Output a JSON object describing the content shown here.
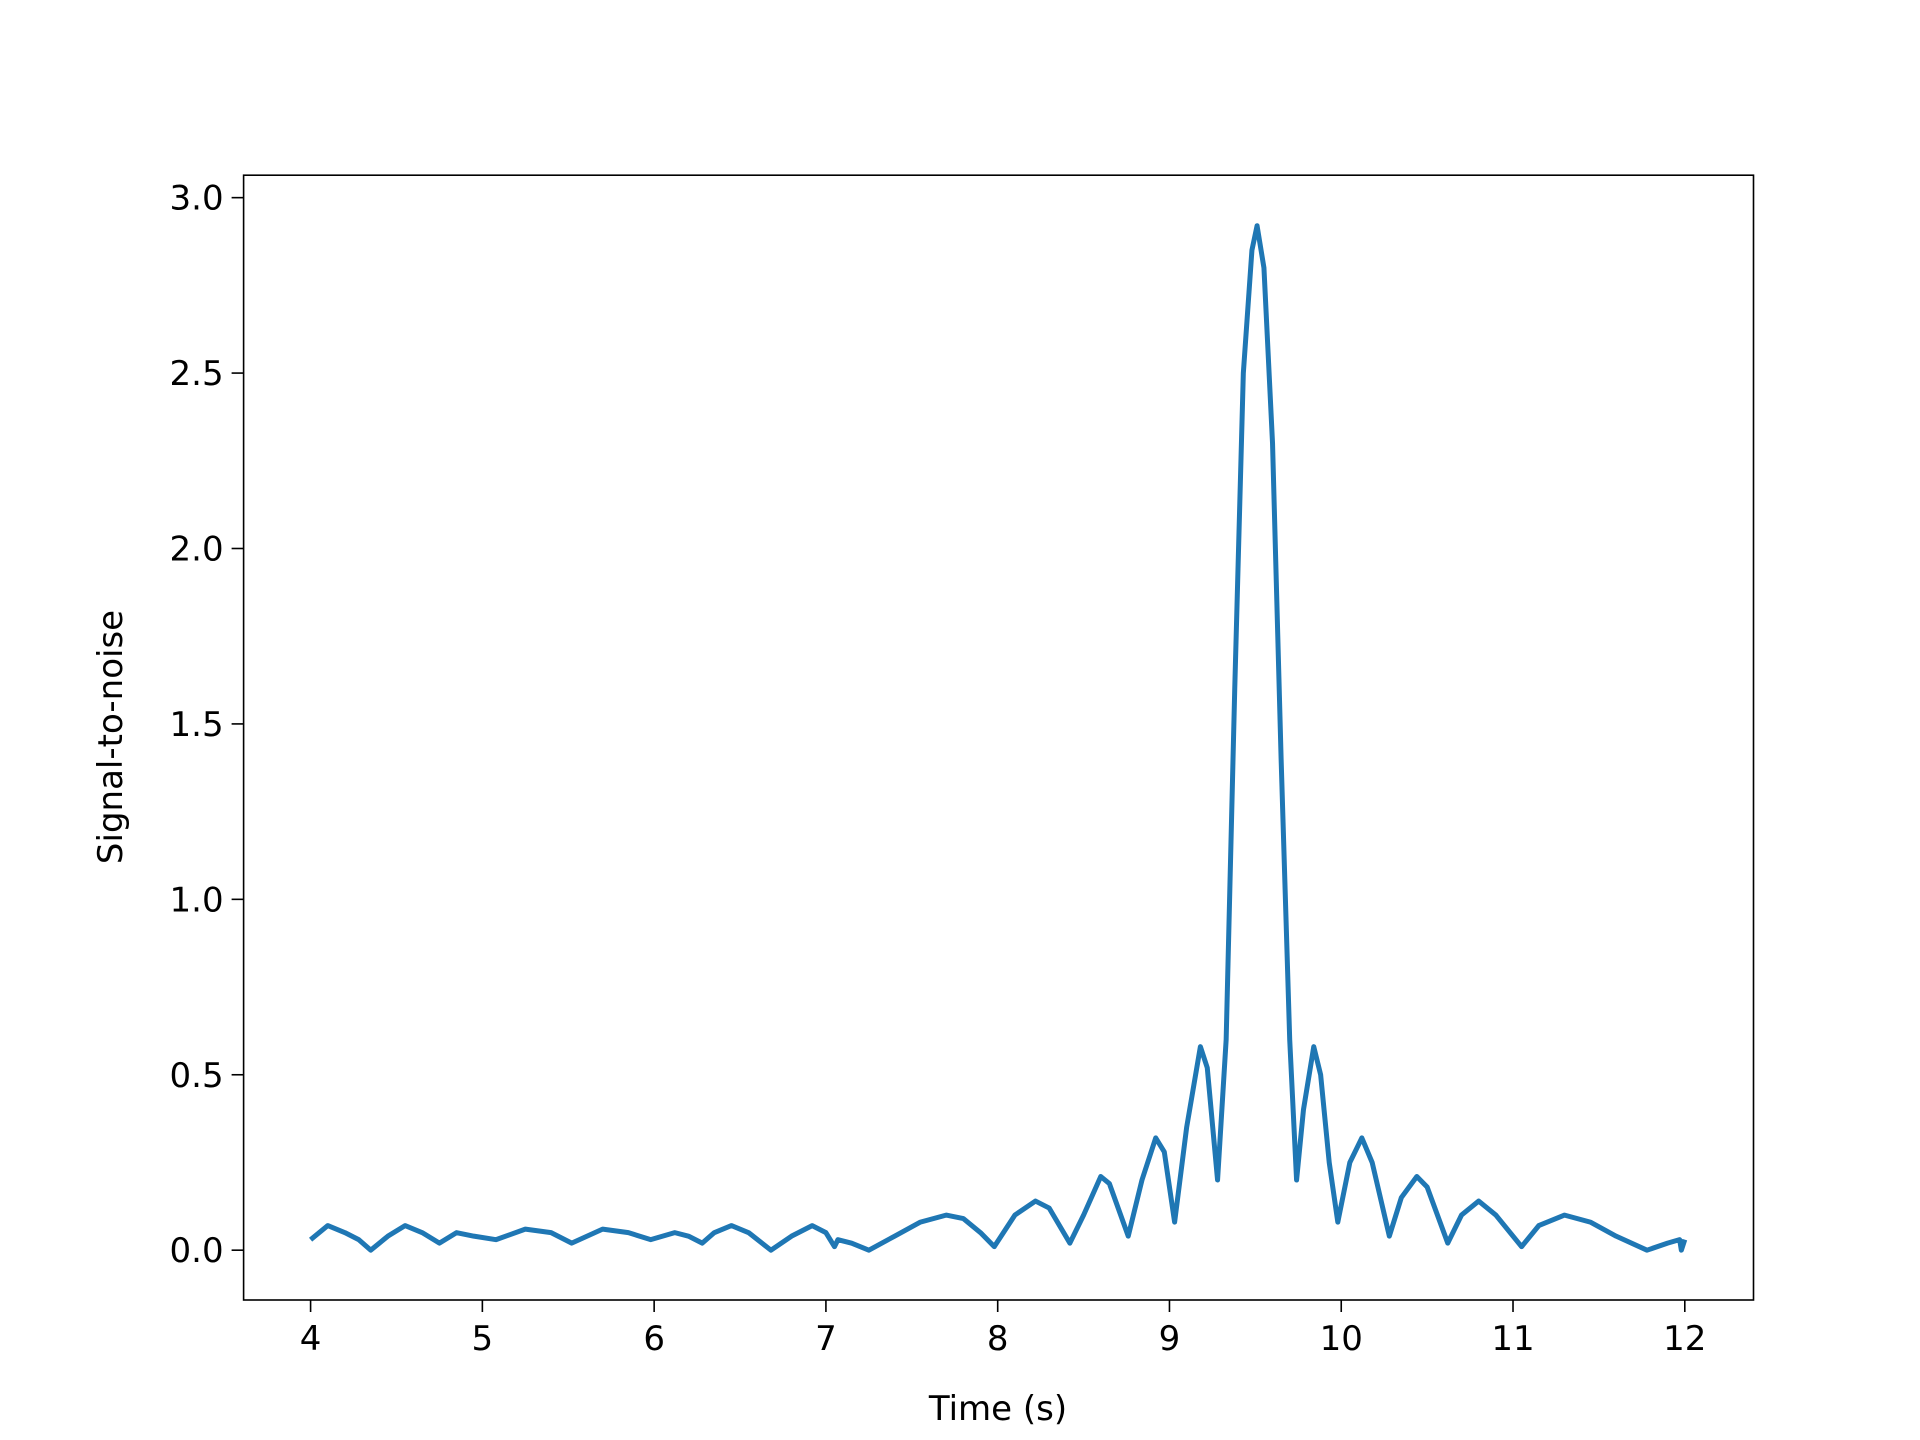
{
  "chart_data": {
    "type": "line",
    "xlabel": "Time (s)",
    "ylabel": "Signal-to-noise",
    "x": [
      4.0,
      4.1,
      4.2,
      4.28,
      4.35,
      4.45,
      4.55,
      4.65,
      4.75,
      4.85,
      4.95,
      5.08,
      5.25,
      5.4,
      5.52,
      5.7,
      5.85,
      5.98,
      6.12,
      6.2,
      6.28,
      6.35,
      6.45,
      6.55,
      6.68,
      6.8,
      6.92,
      7.0,
      7.05,
      7.07,
      7.15,
      7.25,
      7.4,
      7.55,
      7.7,
      7.8,
      7.9,
      7.98,
      8.1,
      8.22,
      8.3,
      8.42,
      8.5,
      8.6,
      8.65,
      8.76,
      8.84,
      8.92,
      8.97,
      9.03,
      9.1,
      9.18,
      9.22,
      9.28,
      9.33,
      9.38,
      9.43,
      9.48,
      9.51,
      9.55,
      9.6,
      9.65,
      9.7,
      9.74,
      9.78,
      9.84,
      9.88,
      9.93,
      9.98,
      10.05,
      10.12,
      10.18,
      10.28,
      10.35,
      10.44,
      10.5,
      10.62,
      10.7,
      10.8,
      10.9,
      11.05,
      11.15,
      11.3,
      11.45,
      11.6,
      11.78,
      11.9,
      11.97,
      11.98,
      12.0
    ],
    "series": [
      {
        "color": "#1f77b4",
        "values": [
          0.03,
          0.07,
          0.05,
          0.03,
          0.0,
          0.04,
          0.07,
          0.05,
          0.02,
          0.05,
          0.04,
          0.03,
          0.06,
          0.05,
          0.02,
          0.06,
          0.05,
          0.03,
          0.05,
          0.04,
          0.02,
          0.05,
          0.07,
          0.05,
          0.0,
          0.04,
          0.07,
          0.05,
          0.01,
          0.03,
          0.02,
          0.0,
          0.04,
          0.08,
          0.1,
          0.09,
          0.05,
          0.01,
          0.1,
          0.14,
          0.12,
          0.02,
          0.1,
          0.21,
          0.19,
          0.04,
          0.2,
          0.32,
          0.28,
          0.08,
          0.35,
          0.58,
          0.52,
          0.2,
          0.6,
          1.6,
          2.5,
          2.85,
          2.92,
          2.8,
          2.3,
          1.4,
          0.6,
          0.2,
          0.4,
          0.58,
          0.5,
          0.25,
          0.08,
          0.25,
          0.32,
          0.25,
          0.04,
          0.15,
          0.21,
          0.18,
          0.02,
          0.1,
          0.14,
          0.1,
          0.01,
          0.07,
          0.1,
          0.08,
          0.04,
          0.0,
          0.02,
          0.03,
          0.0,
          0.03
        ]
      }
    ],
    "xlim": [
      3.61,
      12.4
    ],
    "ylim": [
      -0.142,
      3.064
    ],
    "xticks": [
      4,
      5,
      6,
      7,
      8,
      9,
      10,
      11,
      12
    ],
    "yticks": [
      {
        "value": 0,
        "label": "0.0"
      },
      0.5,
      {
        "value": 1,
        "label": "1.0"
      },
      1.5,
      {
        "value": 2,
        "label": "2.0"
      },
      2.5,
      {
        "value": 3,
        "label": "3.0"
      }
    ],
    "grid": false
  }
}
